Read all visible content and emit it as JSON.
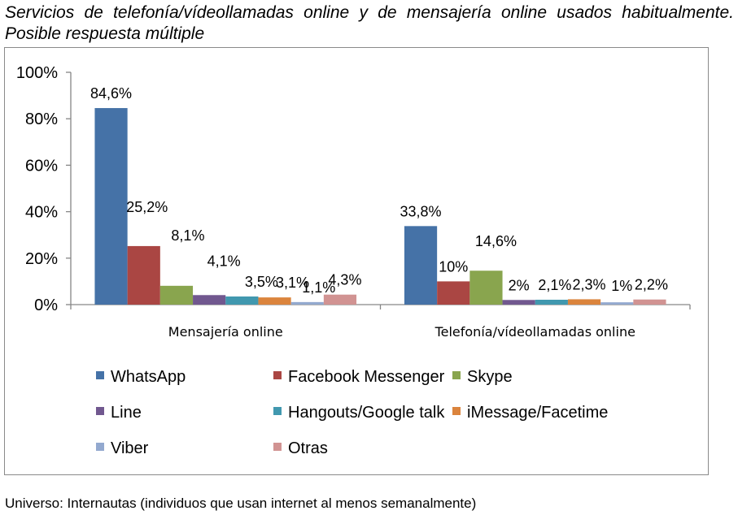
{
  "title": "Servicios de telefonía/vídeollamadas online y de mensajería online usados habitualmente. Posible respuesta múltiple",
  "source": "Universo: Internautas (individuos que usan internet al menos semanalmente)",
  "chart_data": {
    "type": "bar",
    "categories": [
      "Mensajería online",
      "Telefonía/vídeollamadas online"
    ],
    "ylim": [
      0,
      100
    ],
    "yticks": [
      "0%",
      "20%",
      "40%",
      "60%",
      "80%",
      "100%"
    ],
    "legend_position": "bottom",
    "grid": false,
    "series": [
      {
        "name": "WhatsApp",
        "color": "#4572A7",
        "values": [
          84.6,
          33.8
        ],
        "labels": [
          "84,6%",
          "33,8%"
        ]
      },
      {
        "name": "Facebook Messenger",
        "color": "#AA4643",
        "values": [
          25.2,
          10
        ],
        "labels": [
          "25,2%",
          "10%"
        ]
      },
      {
        "name": "Skype",
        "color": "#89A54E",
        "values": [
          8.1,
          14.6
        ],
        "labels": [
          "8,1%",
          "14,6%"
        ]
      },
      {
        "name": "Line",
        "color": "#71588F",
        "values": [
          4.1,
          2
        ],
        "labels": [
          "4,1%",
          "2%"
        ]
      },
      {
        "name": "Hangouts/Google talk",
        "color": "#4198AF",
        "values": [
          3.5,
          2.1
        ],
        "labels": [
          "3,5%",
          "2,1%"
        ]
      },
      {
        "name": "iMessage/Facetime",
        "color": "#DB843D",
        "values": [
          3.1,
          2.3
        ],
        "labels": [
          "3,1%",
          "2,3%"
        ]
      },
      {
        "name": "Viber",
        "color": "#93A9CF",
        "values": [
          1.1,
          1
        ],
        "labels": [
          "1,1%",
          "1%"
        ]
      },
      {
        "name": "Otras",
        "color": "#D19392",
        "values": [
          4.3,
          2.2
        ],
        "labels": [
          "4,3%",
          "2,2%"
        ]
      }
    ]
  }
}
